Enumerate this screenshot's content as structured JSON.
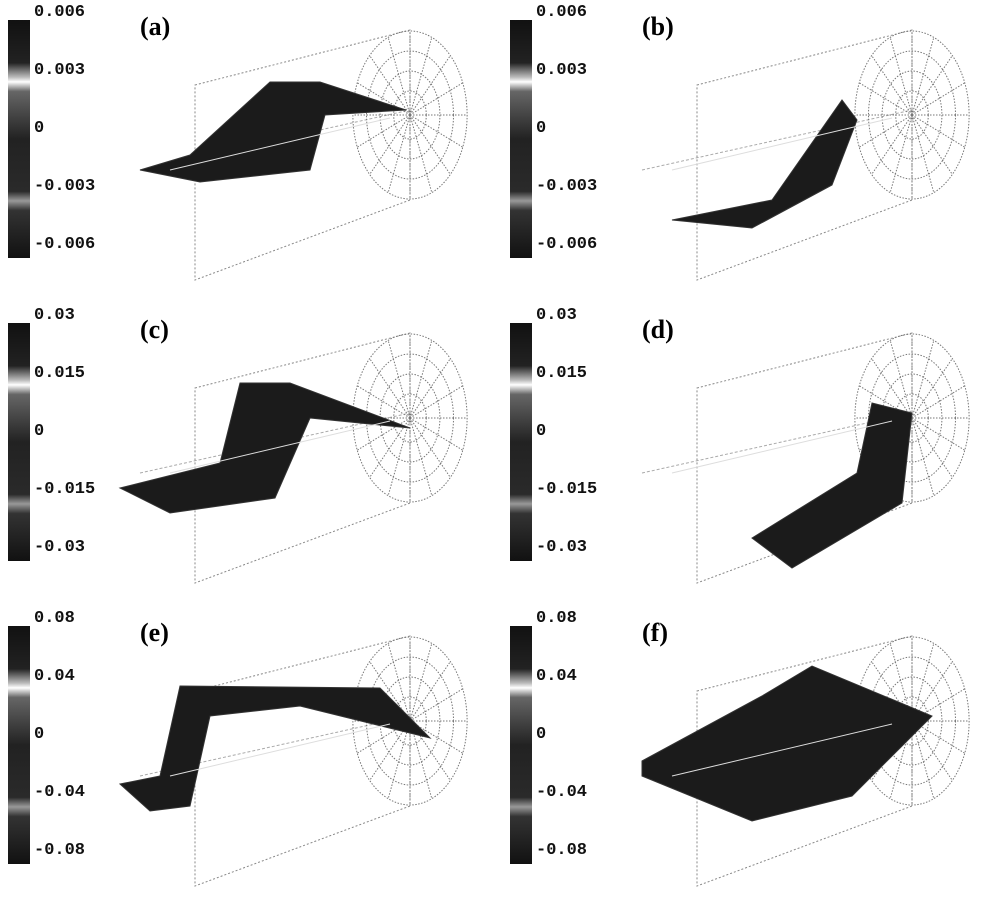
{
  "figure": {
    "panels": [
      {
        "label": "(a)",
        "ticks": [
          "0.006",
          "0.003",
          "0",
          "-0.003",
          "-0.006"
        ]
      },
      {
        "label": "(b)",
        "ticks": [
          "0.006",
          "0.003",
          "0",
          "-0.003",
          "-0.006"
        ]
      },
      {
        "label": "(c)",
        "ticks": [
          "0.03",
          "0.015",
          "0",
          "-0.015",
          "-0.03"
        ]
      },
      {
        "label": "(d)",
        "ticks": [
          "0.03",
          "0.015",
          "0",
          "-0.015",
          "-0.03"
        ]
      },
      {
        "label": "(e)",
        "ticks": [
          "0.08",
          "0.04",
          "0",
          "-0.04",
          "-0.08"
        ]
      },
      {
        "label": "(f)",
        "ticks": [
          "0.08",
          "0.04",
          "0",
          "-0.04",
          "-0.08"
        ]
      }
    ]
  }
}
